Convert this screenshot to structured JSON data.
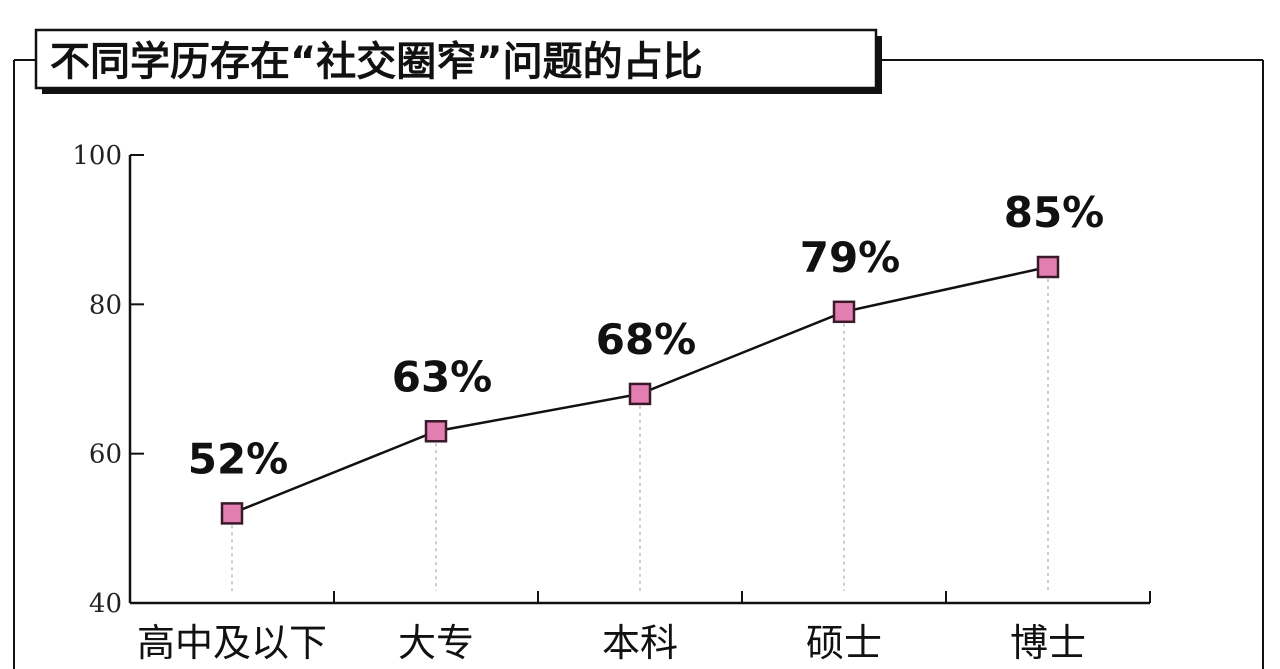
{
  "chart_data": {
    "type": "line",
    "title": "不同学历存在“社交圈窄”问题的占比",
    "categories": [
      "高中及以下",
      "大专",
      "本科",
      "硕士",
      "博士"
    ],
    "values": [
      52,
      63,
      68,
      79,
      85
    ],
    "data_labels": [
      "52%",
      "63%",
      "68%",
      "79%",
      "85%"
    ],
    "ylim": [
      40,
      100
    ],
    "yticks": [
      40,
      60,
      80,
      100
    ],
    "ytick_labels": [
      "40",
      "60",
      "80",
      "100"
    ],
    "xlabel": "",
    "ylabel": "",
    "grid": false,
    "colors": {
      "marker_fill": "#e27fb0",
      "marker_stroke": "#3a1a2a",
      "line": "#111111",
      "axis": "#111111",
      "guide": "#bbbbbb"
    }
  }
}
